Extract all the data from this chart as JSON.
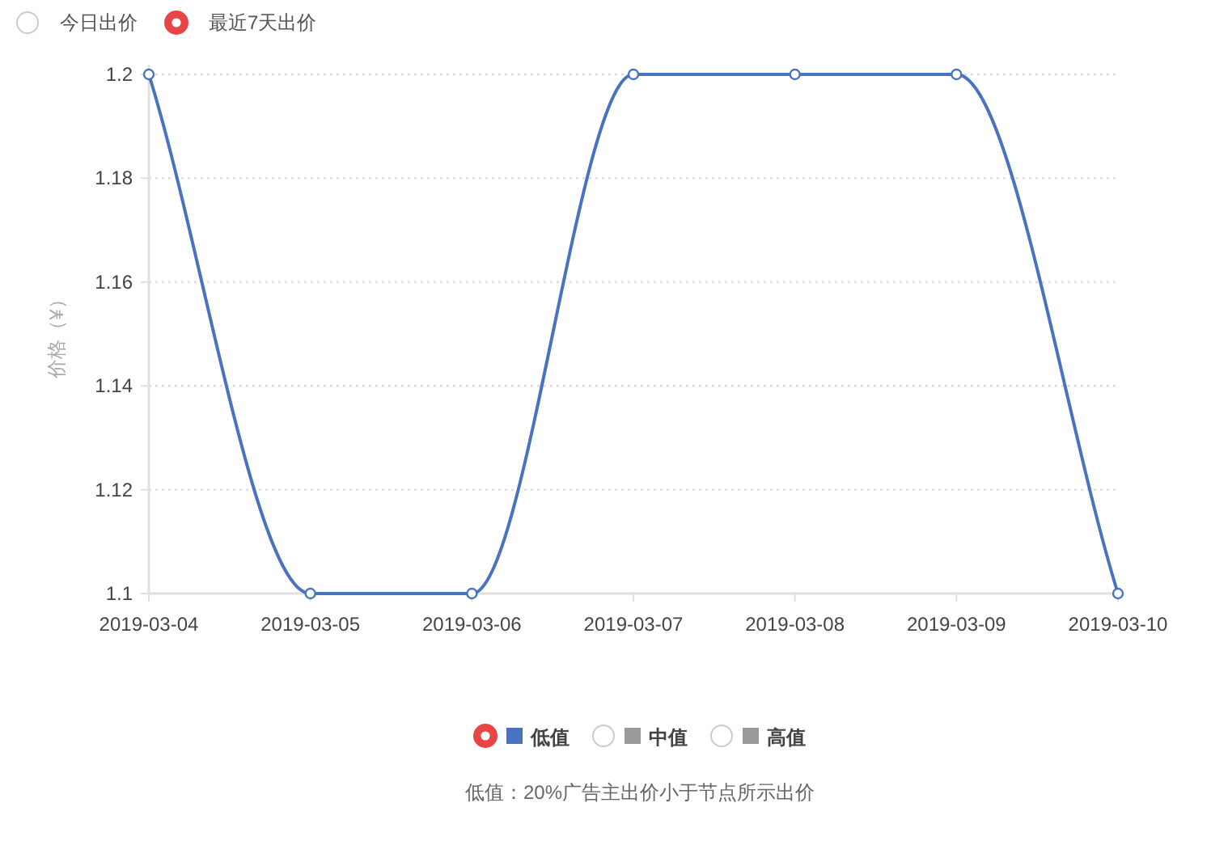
{
  "chart_data": {
    "type": "line",
    "categories": [
      "2019-03-04",
      "2019-03-05",
      "2019-03-06",
      "2019-03-07",
      "2019-03-08",
      "2019-03-09",
      "2019-03-10"
    ],
    "ylabel": "价格（¥）",
    "ylim": [
      1.1,
      1.2
    ],
    "yticks": [
      1.1,
      1.12,
      1.14,
      1.16,
      1.18,
      1.2
    ],
    "grid": "y",
    "marker": "circle",
    "legend": "bottom",
    "series": [
      {
        "name": "低值",
        "color": "#4a73bf",
        "values": [
          1.2,
          1.1,
          1.1,
          1.2,
          1.2,
          1.2,
          1.1
        ]
      },
      {
        "name": "中值",
        "color": "#999999",
        "values": [
          null,
          null,
          null,
          null,
          null,
          null,
          null
        ]
      },
      {
        "name": "高值",
        "color": "#999999",
        "values": [
          null,
          null,
          null,
          null,
          null,
          null,
          null
        ]
      }
    ],
    "annotations": [
      "今日出价",
      "最近7天出价",
      "低值：20%广告主出价小于节点所示出价"
    ]
  }
}
